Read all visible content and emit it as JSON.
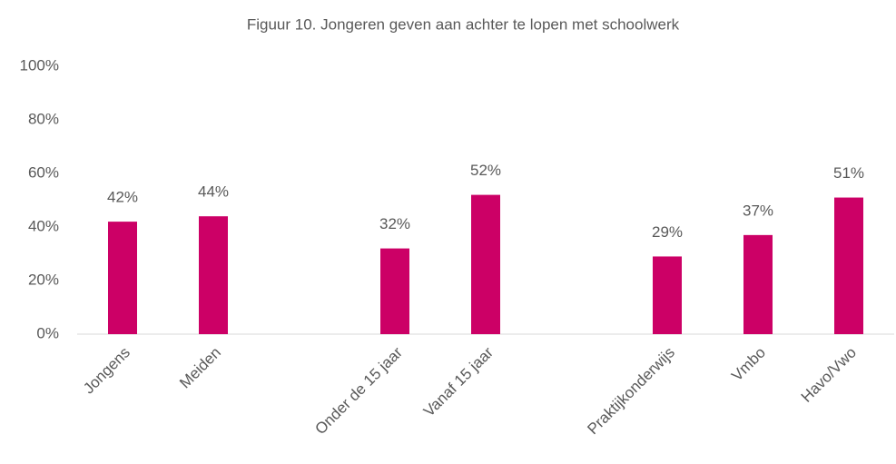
{
  "chart_data": {
    "type": "bar",
    "title": "Figuur 10. Jongeren geven aan achter te lopen met schoolwerk",
    "categories": [
      "Jongens",
      "Meiden",
      null,
      "Onder de 15 jaar",
      "Vanaf 15 jaar",
      null,
      "Praktijkonderwijs",
      "Vmbo",
      "Havo/Vwo"
    ],
    "values": [
      42,
      44,
      null,
      32,
      52,
      null,
      29,
      37,
      51
    ],
    "value_labels": [
      "42%",
      "44%",
      null,
      "32%",
      "52%",
      null,
      "29%",
      "37%",
      "51%"
    ],
    "color": "#cc0066",
    "ylim": [
      0,
      100
    ],
    "yticks": [
      {
        "value": 0,
        "label": "0%"
      },
      {
        "value": 20,
        "label": "20%"
      },
      {
        "value": 40,
        "label": "40%"
      },
      {
        "value": 60,
        "label": "60%"
      },
      {
        "value": 80,
        "label": "80%"
      },
      {
        "value": 100,
        "label": "100%"
      }
    ],
    "grid": false
  }
}
